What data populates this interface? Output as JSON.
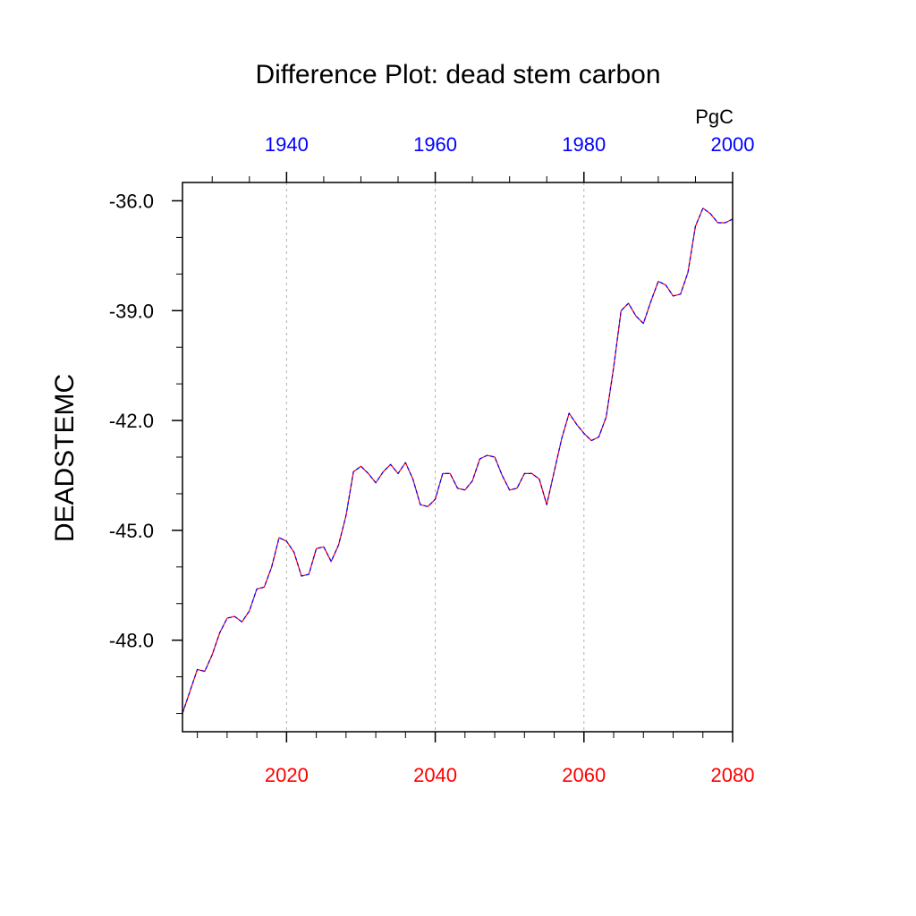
{
  "chart_data": {
    "type": "line",
    "title": "Difference Plot: dead stem carbon",
    "units": "PgC",
    "ylabel": "DEADSTEMC",
    "xlabel": "",
    "xlim": [
      2006,
      2080
    ],
    "ylim": [
      -50.5,
      -35.5
    ],
    "bottom_axis": {
      "color": "#ff0000",
      "ticks": [
        2020,
        2040,
        2060,
        2080
      ],
      "labels": [
        "2020",
        "2040",
        "2060",
        "2080"
      ]
    },
    "top_axis": {
      "color": "#0000ff",
      "ticks": [
        1940,
        1960,
        1980,
        2000
      ],
      "labels": [
        "1940",
        "1960",
        "1980",
        "2000"
      ],
      "offset_years": 80
    },
    "y_axis": {
      "ticks": [
        -36.0,
        -39.0,
        -42.0,
        -45.0,
        -48.0
      ],
      "labels": [
        "-36.0",
        "-39.0",
        "-42.0",
        "-45.0",
        "-48.0"
      ]
    },
    "grid": "vertical dashed at major x ticks",
    "series": [
      {
        "line_colors": [
          "#ff0000",
          "#0000ff"
        ],
        "x": [
          2006,
          2007,
          2008,
          2009,
          2010,
          2011,
          2012,
          2013,
          2014,
          2015,
          2016,
          2017,
          2018,
          2019,
          2020,
          2021,
          2022,
          2023,
          2024,
          2025,
          2026,
          2027,
          2028,
          2029,
          2030,
          2031,
          2032,
          2033,
          2034,
          2035,
          2036,
          2037,
          2038,
          2039,
          2040,
          2041,
          2042,
          2043,
          2044,
          2045,
          2046,
          2047,
          2048,
          2049,
          2050,
          2051,
          2052,
          2053,
          2054,
          2055,
          2056,
          2057,
          2058,
          2059,
          2060,
          2061,
          2062,
          2063,
          2064,
          2065,
          2066,
          2067,
          2068,
          2069,
          2070,
          2071,
          2072,
          2073,
          2074,
          2075,
          2076,
          2077,
          2078,
          2079,
          2080
        ],
        "y": [
          -50.0,
          -49.4,
          -48.8,
          -48.85,
          -48.4,
          -47.8,
          -47.4,
          -47.35,
          -47.5,
          -47.2,
          -46.6,
          -46.55,
          -46.0,
          -45.2,
          -45.3,
          -45.6,
          -46.25,
          -46.2,
          -45.5,
          -45.45,
          -45.85,
          -45.4,
          -44.6,
          -43.4,
          -43.25,
          -43.45,
          -43.7,
          -43.4,
          -43.2,
          -43.45,
          -43.15,
          -43.6,
          -44.3,
          -44.35,
          -44.15,
          -43.45,
          -43.45,
          -43.85,
          -43.9,
          -43.65,
          -43.05,
          -42.95,
          -43.0,
          -43.5,
          -43.9,
          -43.85,
          -43.45,
          -43.45,
          -43.6,
          -44.3,
          -43.4,
          -42.5,
          -41.8,
          -42.1,
          -42.35,
          -42.55,
          -42.45,
          -41.9,
          -40.55,
          -39.0,
          -38.8,
          -39.15,
          -39.35,
          -38.75,
          -38.2,
          -38.3,
          -38.6,
          -38.55,
          -37.95,
          -36.7,
          -36.2,
          -36.35,
          -36.6,
          -36.6,
          -36.5
        ]
      }
    ]
  }
}
